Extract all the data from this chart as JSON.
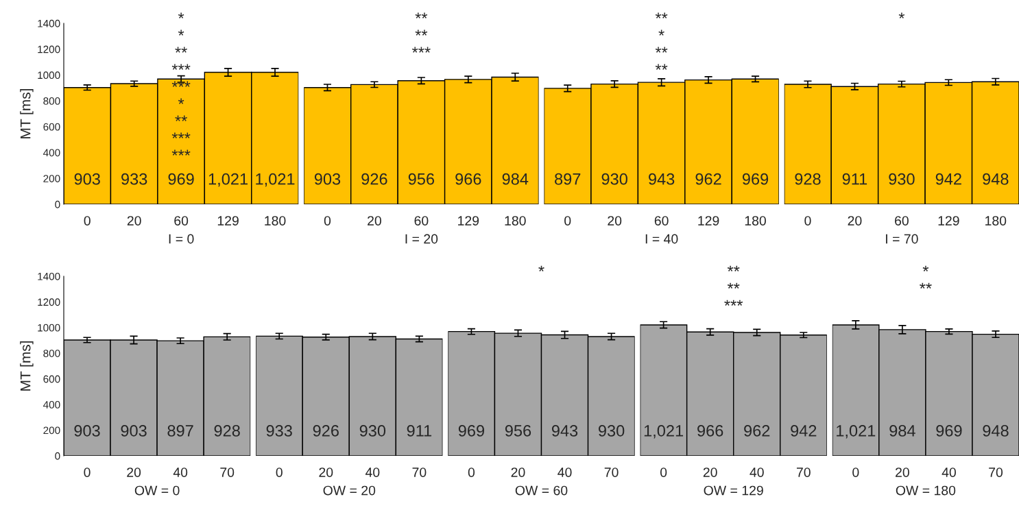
{
  "chart_data": [
    {
      "type": "bar",
      "ylabel": "MT [ms]",
      "xlabel": "I = 0",
      "categories": [
        "0",
        "20",
        "60",
        "129",
        "180"
      ],
      "color": "#ffc000",
      "values": [
        903,
        933,
        969,
        1021,
        1021
      ],
      "value_labels": [
        "903",
        "933",
        "969",
        "1,021",
        "1,021"
      ],
      "errors": [
        20,
        20,
        25,
        30,
        30
      ],
      "ylim": [
        0,
        1400
      ],
      "yticks": [
        0,
        200,
        400,
        600,
        800,
        1000,
        1200,
        1400
      ],
      "annotations": [
        "*",
        "*",
        "**",
        "***",
        "***",
        "*",
        "**",
        "***",
        "***"
      ]
    },
    {
      "type": "bar",
      "xlabel": "I = 20",
      "categories": [
        "0",
        "20",
        "60",
        "129",
        "180"
      ],
      "color": "#ffc000",
      "values": [
        903,
        926,
        956,
        966,
        984
      ],
      "value_labels": [
        "903",
        "926",
        "956",
        "966",
        "984"
      ],
      "errors": [
        25,
        22,
        25,
        25,
        30
      ],
      "ylim": [
        0,
        1400
      ],
      "tick_labels": "x",
      "annotations": [
        "**",
        "**",
        "***"
      ]
    },
    {
      "type": "bar",
      "xlabel": "I = 40",
      "categories": [
        "0",
        "20",
        "60",
        "129",
        "180"
      ],
      "color": "#ffc000",
      "values": [
        897,
        930,
        943,
        962,
        969
      ],
      "value_labels": [
        "897",
        "930",
        "943",
        "962",
        "969"
      ],
      "errors": [
        25,
        25,
        28,
        25,
        22
      ],
      "ylim": [
        0,
        1400
      ],
      "tick_labels": "x",
      "annotations": [
        "**",
        "*",
        "**",
        "**"
      ]
    },
    {
      "type": "bar",
      "xlabel": "I = 70",
      "categories": [
        "0",
        "20",
        "60",
        "129",
        "180"
      ],
      "color": "#ffc000",
      "values": [
        928,
        911,
        930,
        942,
        948
      ],
      "value_labels": [
        "928",
        "911",
        "930",
        "942",
        "948"
      ],
      "errors": [
        25,
        25,
        22,
        22,
        25
      ],
      "ylim": [
        0,
        1400
      ],
      "tick_labels": "x",
      "annotations": [
        "*"
      ]
    },
    {
      "type": "bar",
      "ylabel": "MT [ms]",
      "xlabel": "OW = 0",
      "categories": [
        "0",
        "20",
        "40",
        "70"
      ],
      "color": "#a6a6a6",
      "values": [
        903,
        903,
        897,
        928
      ],
      "value_labels": [
        "903",
        "903",
        "897",
        "928"
      ],
      "errors": [
        20,
        30,
        22,
        25
      ],
      "ylim": [
        0,
        1400
      ],
      "yticks": [
        0,
        200,
        400,
        600,
        800,
        1000,
        1200,
        1400
      ]
    },
    {
      "type": "bar",
      "xlabel": "OW = 20",
      "categories": [
        "0",
        "20",
        "40",
        "70"
      ],
      "color": "#a6a6a6",
      "values": [
        933,
        926,
        930,
        911
      ],
      "value_labels": [
        "933",
        "926",
        "930",
        "911"
      ],
      "errors": [
        22,
        22,
        25,
        22
      ],
      "ylim": [
        0,
        1400
      ],
      "tick_labels": "x"
    },
    {
      "type": "bar",
      "xlabel": "OW = 60",
      "categories": [
        "0",
        "20",
        "40",
        "70"
      ],
      "color": "#a6a6a6",
      "values": [
        969,
        956,
        943,
        930
      ],
      "value_labels": [
        "969",
        "956",
        "943",
        "930"
      ],
      "errors": [
        22,
        25,
        28,
        25
      ],
      "ylim": [
        0,
        1400
      ],
      "tick_labels": "x",
      "annotations": [
        "*"
      ]
    },
    {
      "type": "bar",
      "xlabel": "OW = 129",
      "categories": [
        "0",
        "20",
        "40",
        "70"
      ],
      "color": "#a6a6a6",
      "values": [
        1021,
        966,
        962,
        942
      ],
      "value_labels": [
        "1,021",
        "966",
        "962",
        "942"
      ],
      "errors": [
        25,
        25,
        25,
        20
      ],
      "ylim": [
        0,
        1400
      ],
      "tick_labels": "x",
      "annotations": [
        "**",
        "**",
        "***"
      ]
    },
    {
      "type": "bar",
      "xlabel": "OW = 180",
      "categories": [
        "0",
        "20",
        "40",
        "70"
      ],
      "color": "#a6a6a6",
      "values": [
        1021,
        984,
        969,
        948
      ],
      "value_labels": [
        "1,021",
        "984",
        "969",
        "948"
      ],
      "errors": [
        32,
        32,
        20,
        25
      ],
      "ylim": [
        0,
        1400
      ],
      "tick_labels": "x",
      "annotations": [
        "*",
        "**"
      ]
    }
  ]
}
